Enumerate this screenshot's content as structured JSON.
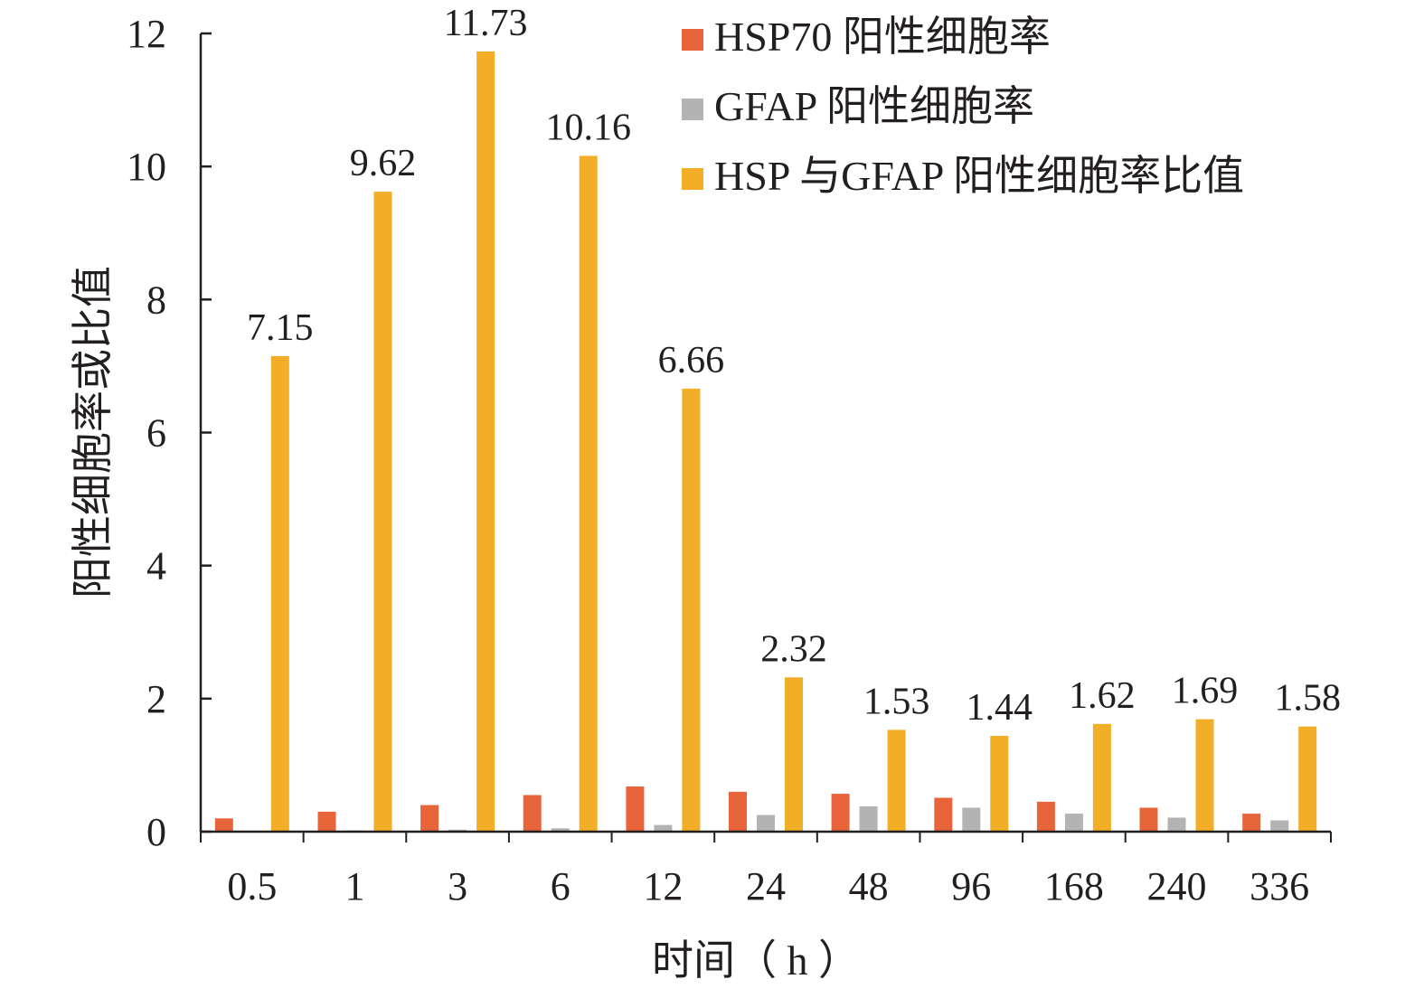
{
  "chart_data": {
    "type": "bar",
    "title": "",
    "xlabel": "时间（ h ）",
    "ylabel": "阳性细胞率或比值",
    "ylim": [
      0,
      12
    ],
    "yticks": [
      0,
      2,
      4,
      6,
      8,
      10,
      12
    ],
    "categories": [
      "0.5",
      "1",
      "3",
      "6",
      "12",
      "24",
      "48",
      "96",
      "168",
      "240",
      "336"
    ],
    "legend_position": "top-right",
    "grid": false,
    "series": [
      {
        "name": "HSP70 阳性细胞率",
        "color": "#e8643a",
        "values": [
          0.2,
          0.3,
          0.4,
          0.55,
          0.68,
          0.6,
          0.57,
          0.51,
          0.45,
          0.36,
          0.27
        ],
        "labels": []
      },
      {
        "name": "GFAP 阳性细胞率",
        "color": "#b3b3b3",
        "values": [
          0.01,
          0.02,
          0.03,
          0.05,
          0.1,
          0.25,
          0.38,
          0.36,
          0.27,
          0.21,
          0.17
        ],
        "labels": []
      },
      {
        "name": "HSP 与GFAP 阳性细胞率比值",
        "color": "#f2ae26",
        "values": [
          7.15,
          9.62,
          11.73,
          10.16,
          6.66,
          2.32,
          1.53,
          1.44,
          1.62,
          1.69,
          1.58
        ],
        "labels": [
          "7.15",
          "9.62",
          "11.73",
          "10.16",
          "6.66",
          "2.32",
          "1.53",
          "1.44",
          "1.62",
          "1.69",
          "1.58"
        ]
      }
    ]
  }
}
